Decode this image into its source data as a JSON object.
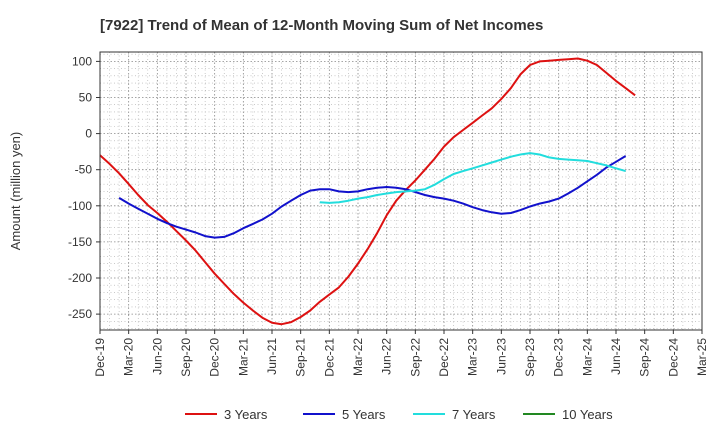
{
  "chart_data": {
    "type": "line",
    "title": "[7922]  Trend of Mean of 12-Month Moving Sum of Net Incomes",
    "ylabel": "Amount (million yen)",
    "xlabel": "",
    "ylim": [
      -272,
      113
    ],
    "yticks": [
      100,
      50,
      0,
      -50,
      -100,
      -150,
      -200,
      -250
    ],
    "x_ticks": [
      "Dec-19",
      "Mar-20",
      "Jun-20",
      "Sep-20",
      "Dec-20",
      "Mar-21",
      "Jun-21",
      "Sep-21",
      "Dec-21",
      "Mar-22",
      "Jun-22",
      "Sep-22",
      "Dec-22",
      "Mar-23",
      "Jun-23",
      "Sep-23",
      "Dec-23",
      "Mar-24",
      "Jun-24",
      "Sep-24",
      "Dec-24",
      "Mar-25"
    ],
    "grid": true,
    "legend_position": "bottom",
    "series": [
      {
        "name": "3 Years",
        "color": "#dd1111",
        "points": [
          [
            0,
            -30
          ],
          [
            1,
            -42
          ],
          [
            2,
            -55
          ],
          [
            3,
            -70
          ],
          [
            4,
            -85
          ],
          [
            5,
            -99
          ],
          [
            6,
            -110
          ],
          [
            7,
            -122
          ],
          [
            8,
            -135
          ],
          [
            9,
            -148
          ],
          [
            10,
            -162
          ],
          [
            11,
            -178
          ],
          [
            12,
            -194
          ],
          [
            13,
            -208
          ],
          [
            14,
            -222
          ],
          [
            15,
            -234
          ],
          [
            16,
            -245
          ],
          [
            17,
            -255
          ],
          [
            18,
            -262
          ],
          [
            19,
            -264
          ],
          [
            20,
            -261
          ],
          [
            21,
            -254
          ],
          [
            22,
            -245
          ],
          [
            23,
            -233
          ],
          [
            24,
            -223
          ],
          [
            25,
            -213
          ],
          [
            26,
            -198
          ],
          [
            27,
            -180
          ],
          [
            28,
            -160
          ],
          [
            29,
            -138
          ],
          [
            30,
            -113
          ],
          [
            31,
            -93
          ],
          [
            32,
            -78
          ],
          [
            33,
            -65
          ],
          [
            34,
            -50
          ],
          [
            35,
            -35
          ],
          [
            36,
            -18
          ],
          [
            37,
            -5
          ],
          [
            38,
            5
          ],
          [
            39,
            15
          ],
          [
            40,
            25
          ],
          [
            41,
            35
          ],
          [
            42,
            48
          ],
          [
            43,
            63
          ],
          [
            44,
            82
          ],
          [
            45,
            95
          ],
          [
            46,
            100
          ],
          [
            47,
            101
          ],
          [
            48,
            102
          ],
          [
            49,
            103
          ],
          [
            50,
            104
          ],
          [
            51,
            101
          ],
          [
            52,
            95
          ],
          [
            53,
            84
          ],
          [
            54,
            73
          ],
          [
            55,
            63
          ],
          [
            56,
            53
          ]
        ]
      },
      {
        "name": "5 Years",
        "color": "#1111cc",
        "points": [
          [
            2,
            -89
          ],
          [
            3,
            -97
          ],
          [
            4,
            -104
          ],
          [
            5,
            -111
          ],
          [
            6,
            -118
          ],
          [
            7,
            -124
          ],
          [
            8,
            -129
          ],
          [
            9,
            -133
          ],
          [
            10,
            -137
          ],
          [
            11,
            -142
          ],
          [
            12,
            -144
          ],
          [
            13,
            -143
          ],
          [
            14,
            -138
          ],
          [
            15,
            -131
          ],
          [
            16,
            -125
          ],
          [
            17,
            -119
          ],
          [
            18,
            -111
          ],
          [
            19,
            -101
          ],
          [
            20,
            -93
          ],
          [
            21,
            -85
          ],
          [
            22,
            -79
          ],
          [
            23,
            -77
          ],
          [
            24,
            -77
          ],
          [
            25,
            -80
          ],
          [
            26,
            -81
          ],
          [
            27,
            -80
          ],
          [
            28,
            -77
          ],
          [
            29,
            -75
          ],
          [
            30,
            -74
          ],
          [
            31,
            -75
          ],
          [
            32,
            -77
          ],
          [
            33,
            -81
          ],
          [
            34,
            -85
          ],
          [
            35,
            -88
          ],
          [
            36,
            -90
          ],
          [
            37,
            -93
          ],
          [
            38,
            -97
          ],
          [
            39,
            -102
          ],
          [
            40,
            -106
          ],
          [
            41,
            -109
          ],
          [
            42,
            -111
          ],
          [
            43,
            -110
          ],
          [
            44,
            -106
          ],
          [
            45,
            -101
          ],
          [
            46,
            -97
          ],
          [
            47,
            -94
          ],
          [
            48,
            -90
          ],
          [
            49,
            -83
          ],
          [
            50,
            -75
          ],
          [
            51,
            -66
          ],
          [
            52,
            -57
          ],
          [
            53,
            -47
          ],
          [
            54,
            -39
          ],
          [
            55,
            -31
          ]
        ]
      },
      {
        "name": "7 Years",
        "color": "#22dddd",
        "points": [
          [
            23,
            -95
          ],
          [
            24,
            -96
          ],
          [
            25,
            -95
          ],
          [
            26,
            -93
          ],
          [
            27,
            -90
          ],
          [
            28,
            -88
          ],
          [
            29,
            -85
          ],
          [
            30,
            -83
          ],
          [
            31,
            -81
          ],
          [
            32,
            -80
          ],
          [
            33,
            -79
          ],
          [
            34,
            -77
          ],
          [
            35,
            -71
          ],
          [
            36,
            -63
          ],
          [
            37,
            -56
          ],
          [
            38,
            -52
          ],
          [
            39,
            -48
          ],
          [
            40,
            -44
          ],
          [
            41,
            -40
          ],
          [
            42,
            -36
          ],
          [
            43,
            -32
          ],
          [
            44,
            -29
          ],
          [
            45,
            -27
          ],
          [
            46,
            -29
          ],
          [
            47,
            -33
          ],
          [
            48,
            -35
          ],
          [
            49,
            -36
          ],
          [
            50,
            -37
          ],
          [
            51,
            -38
          ],
          [
            52,
            -41
          ],
          [
            53,
            -44
          ],
          [
            54,
            -48
          ],
          [
            55,
            -52
          ]
        ]
      },
      {
        "name": "10 Years",
        "color": "#228822",
        "points": []
      }
    ]
  }
}
